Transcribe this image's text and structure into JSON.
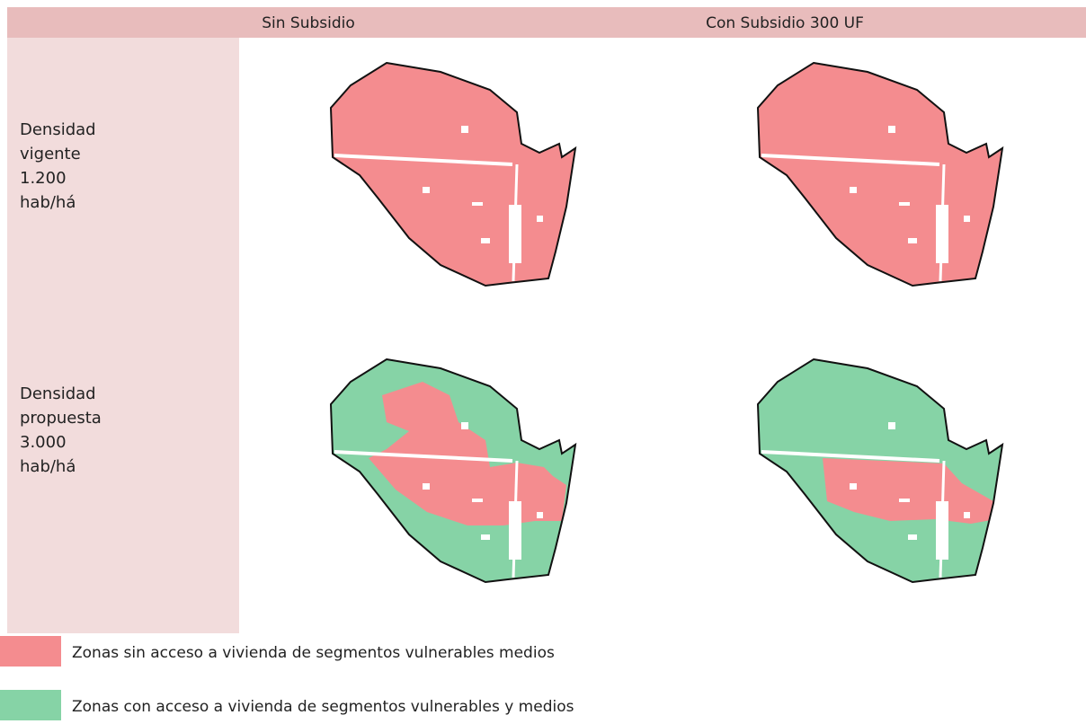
{
  "header": {
    "columns": [
      "Sin Subsidio",
      "Con Subsidio 300 UF"
    ]
  },
  "rows": [
    {
      "label": [
        "Densidad",
        "vigente",
        "1.200",
        "hab/há"
      ]
    },
    {
      "label": [
        "Densidad",
        "propuesta",
        "3.000",
        "hab/há"
      ]
    }
  ],
  "legend": [
    {
      "label": "Zonas sin acceso a vivienda de segmentos vulnerables medios",
      "color": "#f48c8f"
    },
    {
      "label": "Zonas con acceso a vivienda de segmentos vulnerables y medios",
      "color": "#86d3a6"
    }
  ]
}
